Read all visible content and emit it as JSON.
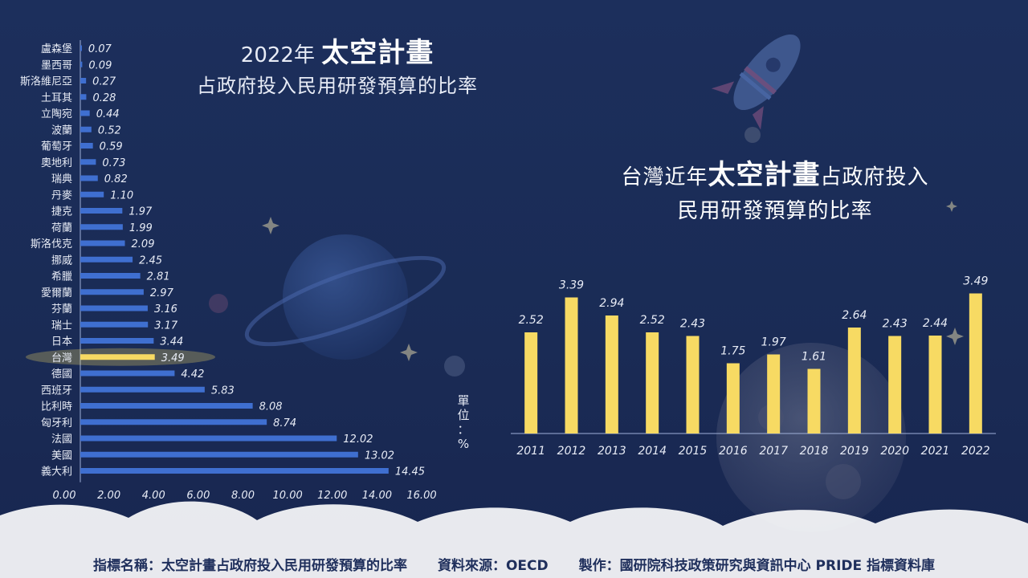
{
  "left_title": {
    "line1_pre": "2022年",
    "line1_hl": "太空計畫",
    "line2": "占政府投入民用研發預算的比率"
  },
  "right_title": {
    "line1_pre": "台灣近年",
    "line1_hl": "太空計畫",
    "line1_post": "占政府投",
    "line1_post2": "入",
    "line2": "民用研發預算的比率"
  },
  "unit_label": {
    "c1": "單",
    "c2": "位",
    "c3": "：",
    "c4": "%"
  },
  "footer": {
    "indicator": "指標名稱：太空計畫占政府投入民用研發預算的比率",
    "source": "資料來源：OECD",
    "producer": "製作：國研院科技政策研究與資訊中心 PRIDE 指標資料庫"
  },
  "colors": {
    "bar_blue": "#3f6fd0",
    "bar_yellow": "#f7da63",
    "highlight": "#f7da63",
    "text": "#e8ecf6"
  },
  "chart_data": [
    {
      "type": "bar",
      "orientation": "horizontal",
      "categories": [
        "盧森堡",
        "墨西哥",
        "斯洛維尼亞",
        "土耳其",
        "立陶宛",
        "波蘭",
        "葡萄牙",
        "奧地利",
        "瑞典",
        "丹麥",
        "捷克",
        "荷蘭",
        "斯洛伐克",
        "挪威",
        "希臘",
        "愛爾蘭",
        "芬蘭",
        "瑞士",
        "日本",
        "台灣",
        "德國",
        "西班牙",
        "比利時",
        "匈牙利",
        "法國",
        "美國",
        "義大利"
      ],
      "values": [
        0.07,
        0.09,
        0.27,
        0.28,
        0.44,
        0.52,
        0.59,
        0.73,
        0.82,
        1.1,
        1.97,
        1.99,
        2.09,
        2.45,
        2.81,
        2.97,
        3.16,
        3.17,
        3.44,
        3.49,
        4.42,
        5.83,
        8.08,
        8.74,
        12.02,
        13.02,
        14.45
      ],
      "labels": [
        "0.07",
        "0.09",
        "0.27",
        "0.28",
        "0.44",
        "0.52",
        "0.59",
        "0.73",
        "0.82",
        "1.10",
        "1.97",
        "1.99",
        "2.09",
        "2.45",
        "2.81",
        "2.97",
        "3.16",
        "3.17",
        "3.44",
        "3.49",
        "4.42",
        "5.83",
        "8.08",
        "8.74",
        "12.02",
        "13.02",
        "14.45"
      ],
      "highlight": "台灣",
      "xlim": [
        0,
        16
      ],
      "xticks": [
        "0.00",
        "2.00",
        "4.00",
        "6.00",
        "8.00",
        "10.00",
        "12.00",
        "14.00",
        "16.00"
      ]
    },
    {
      "type": "bar",
      "categories": [
        "2011",
        "2012",
        "2013",
        "2014",
        "2015",
        "2016",
        "2017",
        "2018",
        "2019",
        "2020",
        "2021",
        "2022"
      ],
      "values": [
        2.52,
        3.39,
        2.94,
        2.52,
        2.43,
        1.75,
        1.97,
        1.61,
        2.64,
        2.43,
        2.44,
        3.49
      ],
      "labels": [
        "2.52",
        "3.39",
        "2.94",
        "2.52",
        "2.43",
        "1.75",
        "1.97",
        "1.61",
        "2.64",
        "2.43",
        "2.44",
        "3.49"
      ],
      "ylim": [
        0,
        4
      ]
    }
  ]
}
